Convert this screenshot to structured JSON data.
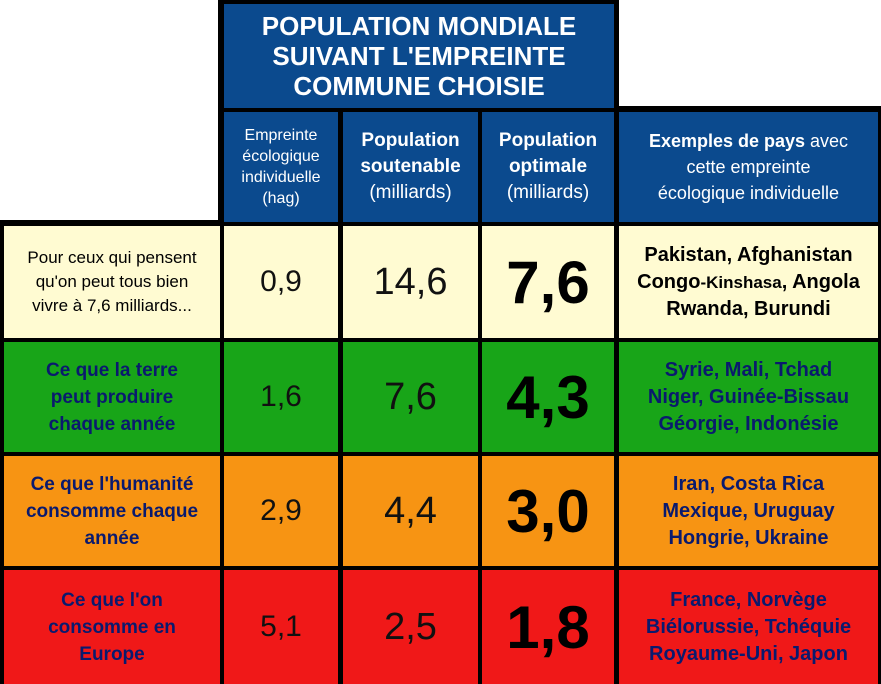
{
  "title": [
    "POPULATION MONDIALE",
    "SUIVANT L'EMPREINTE",
    "COMMUNE CHOISIE"
  ],
  "headers": {
    "footprint": [
      "Empreinte",
      "écologique",
      "individuelle",
      "(hag)"
    ],
    "sustainable": [
      "Population",
      "soutenable",
      "(milliards)"
    ],
    "optimal": [
      "Population",
      "optimale",
      "(milliards)"
    ],
    "examples_bold": "Exemples de pays",
    "examples_rest": [
      " avec",
      "cette empreinte",
      "écologique individuelle"
    ]
  },
  "rows": [
    {
      "label": [
        "Pour ceux qui pensent",
        "qu'on peut tous bien",
        "vivre à 7,6 milliards..."
      ],
      "footprint": "0,9",
      "sustainable": "14,6",
      "optimal": "7,6",
      "ex1": "Pakistan, Afghanistan",
      "ex2a": "Congo",
      "ex2b": "-Kinshasa",
      "ex2c": ", Angola",
      "ex3": "Rwanda, Burundi",
      "bg": "#fffbd2"
    },
    {
      "label": [
        "Ce que la terre",
        "peut produire",
        "chaque année"
      ],
      "footprint": "1,6",
      "sustainable": "7,6",
      "optimal": "4,3",
      "examples": [
        "Syrie, Mali, Tchad",
        "Niger, Guinée-Bissau",
        "Géorgie, Indonésie"
      ],
      "bg": "#18a518"
    },
    {
      "label": [
        "Ce que l'humanité",
        "consomme chaque",
        "année"
      ],
      "footprint": "2,9",
      "sustainable": "4,4",
      "optimal": "3,0",
      "examples": [
        "Iran, Costa Rica",
        "Mexique, Uruguay",
        "Hongrie, Ukraine"
      ],
      "bg": "#f79413"
    },
    {
      "label": [
        "Ce que l'on",
        "consomme en",
        "Europe"
      ],
      "footprint": "5,1",
      "sustainable": "2,5",
      "optimal": "1,8",
      "examples": [
        "France, Norvège",
        "Biélorussie, Tchéquie",
        "Royaume-Uni, Japon"
      ],
      "bg": "#f01818"
    }
  ],
  "chart_data": {
    "type": "table",
    "title": "POPULATION MONDIALE SUIVANT L'EMPREINTE COMMUNE CHOISIE",
    "columns": [
      "",
      "Empreinte écologique individuelle (hag)",
      "Population soutenable (milliards)",
      "Population optimale (milliards)",
      "Exemples de pays avec cette empreinte écologique individuelle"
    ],
    "rows": [
      [
        "Pour ceux qui pensent qu'on peut tous bien vivre à 7,6 milliards...",
        0.9,
        14.6,
        7.6,
        "Pakistan, Afghanistan, Congo-Kinshasa, Angola, Rwanda, Burundi"
      ],
      [
        "Ce que la terre peut produire chaque année",
        1.6,
        7.6,
        4.3,
        "Syrie, Mali, Tchad, Niger, Guinée-Bissau, Géorgie, Indonésie"
      ],
      [
        "Ce que l'humanité consomme chaque année",
        2.9,
        4.4,
        3.0,
        "Iran, Costa Rica, Mexique, Uruguay, Hongrie, Ukraine"
      ],
      [
        "Ce que l'on consomme en Europe",
        5.1,
        2.5,
        1.8,
        "France, Norvège, Biélorussie, Tchéquie, Royaume-Uni, Japon"
      ]
    ],
    "row_colors": [
      "#fffbd2",
      "#18a518",
      "#f79413",
      "#f01818"
    ]
  }
}
